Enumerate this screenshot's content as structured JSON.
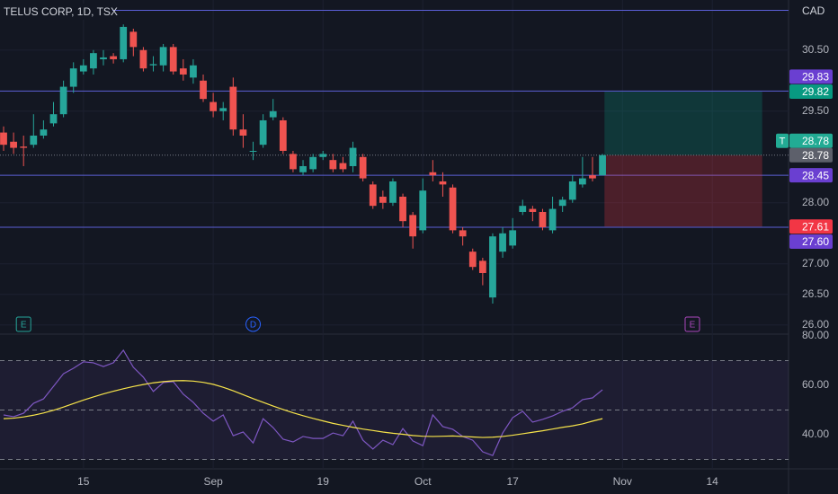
{
  "chart_data": [
    {
      "type": "candlestick",
      "title": "TELUS CORP, 1D, TSX",
      "currency": "CAD",
      "up_color": "#26a69a",
      "down_color": "#ef5350",
      "open": [
        29.15,
        29.0,
        28.92,
        28.95,
        29.1,
        29.3,
        29.45,
        29.9,
        30.15,
        30.2,
        30.35,
        30.4,
        30.35,
        30.8,
        30.5,
        30.25,
        30.25,
        30.55,
        30.2,
        30.05,
        30.0,
        29.65,
        29.5,
        29.9,
        29.2,
        28.85,
        28.95,
        29.4,
        29.35,
        28.8,
        28.5,
        28.55,
        28.75,
        28.7,
        28.65,
        28.6,
        28.75,
        28.3,
        28.1,
        28.0,
        28.1,
        27.8,
        27.55,
        28.5,
        28.35,
        28.25,
        27.55,
        27.2,
        27.05,
        26.45,
        27.2,
        27.3,
        27.85,
        27.9,
        27.85,
        27.55,
        27.95,
        28.05,
        28.3,
        28.45,
        28.45
      ],
      "high": [
        29.25,
        29.15,
        29.1,
        29.45,
        29.35,
        29.65,
        30.0,
        30.3,
        30.35,
        30.5,
        30.5,
        30.45,
        30.92,
        30.85,
        30.55,
        30.4,
        30.6,
        30.6,
        30.35,
        30.35,
        30.1,
        29.8,
        29.65,
        30.05,
        29.45,
        29.0,
        29.45,
        29.7,
        29.4,
        28.85,
        28.7,
        28.8,
        28.85,
        28.8,
        28.75,
        29.0,
        28.8,
        28.35,
        28.2,
        28.4,
        28.15,
        27.85,
        28.4,
        28.7,
        28.5,
        28.3,
        27.6,
        27.25,
        27.1,
        27.5,
        27.6,
        27.75,
        28.05,
        27.95,
        27.9,
        28.1,
        28.1,
        28.45,
        28.75,
        28.75,
        28.8
      ],
      "low": [
        28.85,
        28.8,
        28.6,
        28.9,
        29.05,
        29.25,
        29.4,
        29.8,
        30.1,
        30.1,
        30.25,
        30.28,
        30.3,
        30.4,
        30.15,
        30.15,
        30.15,
        30.1,
        30.0,
        29.95,
        29.65,
        29.4,
        29.35,
        29.1,
        28.9,
        28.7,
        28.9,
        29.35,
        28.8,
        28.5,
        28.45,
        28.5,
        28.7,
        28.5,
        28.5,
        28.5,
        28.35,
        27.9,
        27.9,
        27.95,
        27.6,
        27.25,
        27.5,
        28.35,
        28.1,
        27.5,
        27.3,
        26.9,
        26.65,
        26.35,
        27.1,
        27.25,
        27.8,
        27.7,
        27.55,
        27.5,
        27.85,
        28.0,
        28.25,
        28.35,
        28.45
      ],
      "close": [
        28.95,
        28.9,
        28.9,
        29.1,
        29.2,
        29.45,
        29.9,
        30.2,
        30.25,
        30.45,
        30.38,
        30.35,
        30.88,
        30.55,
        30.2,
        30.27,
        30.55,
        30.15,
        30.1,
        30.25,
        29.7,
        29.5,
        29.55,
        29.2,
        29.1,
        28.85,
        29.35,
        29.5,
        28.85,
        28.55,
        28.6,
        28.75,
        28.8,
        28.55,
        28.55,
        28.9,
        28.4,
        27.95,
        28.0,
        28.35,
        27.7,
        27.45,
        28.2,
        28.45,
        28.3,
        27.55,
        27.45,
        26.95,
        26.85,
        27.45,
        27.5,
        27.55,
        27.95,
        27.85,
        27.6,
        27.9,
        28.05,
        28.35,
        28.4,
        28.4,
        28.78
      ],
      "xlim": [
        -0.36,
        78.64
      ],
      "xticks": [
        {
          "value": 8,
          "label": "15"
        },
        {
          "value": 21,
          "label": "Sep"
        },
        {
          "value": 32,
          "label": "19"
        },
        {
          "value": 42,
          "label": "Oct"
        },
        {
          "value": 51,
          "label": "17"
        },
        {
          "value": 62,
          "label": "Nov"
        },
        {
          "value": 71,
          "label": "14"
        }
      ],
      "ylim": [
        25.85,
        31.32
      ],
      "yticks": [
        {
          "value": 30.5,
          "label": "30.50"
        },
        {
          "value": 29.5,
          "label": "29.50"
        },
        {
          "value": 28,
          "label": "28.00"
        },
        {
          "value": 27,
          "label": "27.00"
        },
        {
          "value": 26.5,
          "label": "26.50"
        },
        {
          "value": 26,
          "label": "26.00"
        }
      ],
      "levels": [
        31.15,
        29.83,
        28.45,
        27.6
      ],
      "level_color": "#5b5fd6",
      "last_price": 28.78,
      "position": {
        "start": 60.2,
        "end": 76,
        "target": 29.82,
        "entry": 28.78,
        "stop": 27.61
      },
      "events": [
        {
          "x": 2,
          "label": "E",
          "color": "#26a69a",
          "shape": "square"
        },
        {
          "x": 25,
          "label": "D",
          "color": "#2962ff",
          "shape": "circle"
        },
        {
          "x": 69,
          "label": "E",
          "color": "#ab47bc",
          "shape": "square"
        }
      ],
      "price_badges": [
        {
          "value": 29.83,
          "label": "29.83",
          "color": "#6a3fd1"
        },
        {
          "value": 29.82,
          "label": "29.82",
          "color": "#089981"
        },
        {
          "value": 28.78,
          "label": "28.78",
          "color": "#22ab94",
          "marker": "T"
        },
        {
          "value": 28.78,
          "label": "28.78",
          "color": "#5d606b"
        },
        {
          "value": 28.45,
          "label": "28.45",
          "color": "#6a3fd1"
        },
        {
          "value": 27.61,
          "label": "27.61",
          "color": "#f23645"
        },
        {
          "value": 27.6,
          "label": "27.60",
          "color": "#6a3fd1"
        }
      ]
    },
    {
      "type": "line",
      "ylim": [
        26.2,
        80.7
      ],
      "yticks": [
        {
          "value": 80,
          "label": "80.00"
        },
        {
          "value": 60,
          "label": "60.00"
        },
        {
          "value": 40,
          "label": "40.00"
        }
      ],
      "bands": [
        30,
        70
      ],
      "hlines": [
        70,
        50,
        30
      ],
      "series": [
        {
          "color": "#7e57c2",
          "values": [
            48.0,
            47.3,
            48.7,
            52.7,
            54.5,
            59.6,
            64.7,
            66.9,
            69.5,
            69.1,
            67.6,
            69.1,
            74.2,
            67.3,
            63.3,
            57.5,
            61.1,
            61.5,
            56.4,
            53.1,
            48.7,
            45.5,
            48.0,
            39.6,
            41.1,
            36.7,
            46.5,
            42.9,
            38.2,
            37.1,
            39.3,
            38.5,
            38.5,
            40.7,
            39.6,
            45.5,
            37.8,
            34.2,
            37.8,
            36.0,
            42.5,
            37.5,
            35.6,
            48.0,
            43.3,
            42.2,
            39.3,
            37.8,
            33.1,
            31.6,
            40.7,
            46.9,
            49.5,
            45.1,
            46.2,
            47.6,
            49.5,
            50.9,
            54.2,
            54.9,
            58.2
          ]
        },
        {
          "color": "#f7e44a",
          "values": [
            46.5,
            46.7,
            47.2,
            47.9,
            48.8,
            49.9,
            51.2,
            52.6,
            54.0,
            55.3,
            56.5,
            57.6,
            58.6,
            59.5,
            60.3,
            61.0,
            61.5,
            61.8,
            61.9,
            61.7,
            61.2,
            60.4,
            59.2,
            57.8,
            56.2,
            54.6,
            53.1,
            51.6,
            50.2,
            48.9,
            47.7,
            46.6,
            45.6,
            44.6,
            43.8,
            43.0,
            42.3,
            41.7,
            41.1,
            40.6,
            40.2,
            39.7,
            39.4,
            39.3,
            39.4,
            39.5,
            39.3,
            39.1,
            38.9,
            39.0,
            39.3,
            39.8,
            40.4,
            41.0,
            41.6,
            42.3,
            43.0,
            43.6,
            44.4,
            45.5,
            46.5
          ]
        }
      ]
    }
  ]
}
